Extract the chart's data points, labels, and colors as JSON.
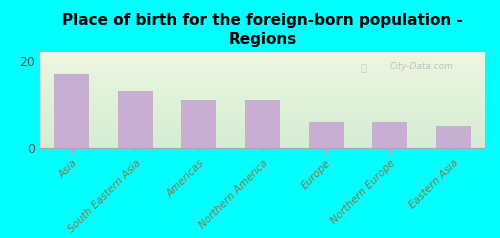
{
  "title": "Place of birth for the foreign-born population -\nRegions",
  "categories": [
    "Asia",
    "South Eastern Asia",
    "Americas",
    "Northern America",
    "Europe",
    "Northern Europe",
    "Eastern Asia"
  ],
  "values": [
    17,
    13,
    11,
    11,
    6,
    6,
    5
  ],
  "bar_color": "#c9aed4",
  "background_color": "#00ffff",
  "plot_bg_color_top": "#eef5e0",
  "plot_bg_color_bottom": "#d4edd4",
  "ylim": [
    0,
    22
  ],
  "yticks": [
    0,
    20
  ],
  "bar_width": 0.55,
  "watermark": "City-Data.com"
}
